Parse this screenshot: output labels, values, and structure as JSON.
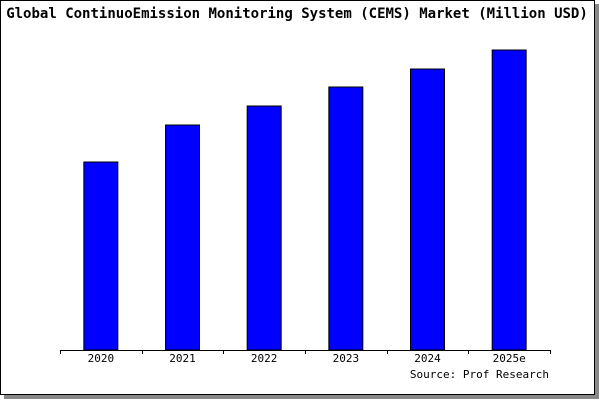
{
  "chart_data": {
    "type": "bar",
    "title": "Global ContinuoEmission Monitoring System (CEMS) Market (Million USD)",
    "categories": [
      "2020",
      "2021",
      "2022",
      "2023",
      "2024",
      "2025e"
    ],
    "values": [
      188,
      225,
      244,
      263,
      281,
      300
    ],
    "color": "#0000ff",
    "ylim": [
      0,
      300
    ],
    "source": "Source: Prof Research"
  }
}
